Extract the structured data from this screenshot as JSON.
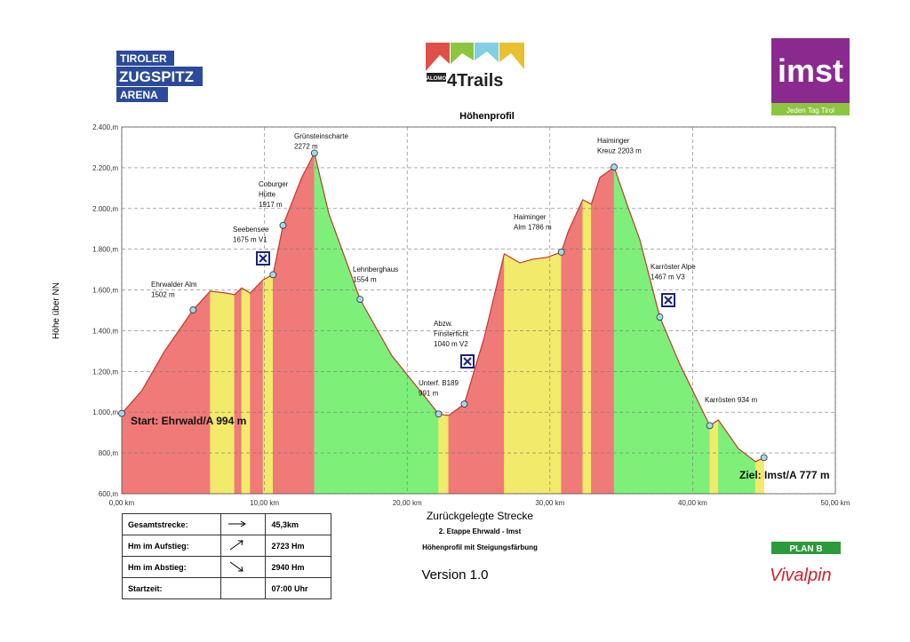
{
  "chart_data": {
    "type": "area",
    "title": "Höhenprofil",
    "xlabel": "Zurückgelegte Strecke",
    "ylabel": "Höhe über NN",
    "subtitle": [
      "2. Etappe Ehrwald - Imst",
      "Höhenprofil mit Steigungsfärbung"
    ],
    "version": "Version 1.0",
    "x": [
      0,
      1.4,
      3.0,
      5.0,
      6.2,
      7.3,
      7.9,
      8.4,
      9.0,
      9.9,
      10.6,
      11.3,
      12.6,
      13.5,
      14.5,
      16.7,
      18.9,
      21.4,
      22.2,
      22.9,
      24.0,
      25.4,
      26.8,
      27.9,
      28.8,
      29.8,
      30.8,
      31.3,
      32.3,
      32.9,
      33.5,
      34.5,
      35.4,
      36.3,
      37.7,
      39.1,
      41.2,
      41.8,
      43.2,
      44.4,
      45.0
    ],
    "values": [
      994,
      1105,
      1300,
      1502,
      1594,
      1585,
      1577,
      1610,
      1585,
      1650,
      1675,
      1917,
      2150,
      2272,
      1977,
      1554,
      1280,
      1062,
      991,
      984,
      1040,
      1367,
      1777,
      1733,
      1751,
      1760,
      1786,
      1890,
      2043,
      2021,
      2152,
      2203,
      2021,
      1847,
      1467,
      1236,
      934,
      962,
      822,
      757,
      777
    ],
    "line_color": "#c0392b",
    "colors": {
      "ascent": "#f07a78",
      "flat": "#f2ea6a",
      "descent": "#7ef07a"
    },
    "xlim": [
      0,
      50
    ],
    "ylim": [
      600,
      2400
    ],
    "grid": true,
    "xticks": [
      {
        "value": 0,
        "label": "0,00 km"
      },
      {
        "value": 10,
        "label": "10,00 km"
      },
      {
        "value": 20,
        "label": "20,00 km"
      },
      {
        "value": 30,
        "label": "30,00 km"
      },
      {
        "value": 40,
        "label": "40,00 km"
      },
      {
        "value": 50,
        "label": "50,00 km"
      }
    ],
    "yticks": [
      {
        "value": 600,
        "label": "600,m"
      },
      {
        "value": 800,
        "label": "800,m"
      },
      {
        "value": 1000,
        "label": "1.000,m"
      },
      {
        "value": 1200,
        "label": "1.200,m"
      },
      {
        "value": 1400,
        "label": "1.400,m"
      },
      {
        "value": 1600,
        "label": "1.600,m"
      },
      {
        "value": 1800,
        "label": "1.800,m"
      },
      {
        "value": 2000,
        "label": "2.000,m"
      },
      {
        "value": 2200,
        "label": "2.200,m"
      },
      {
        "value": 2400,
        "label": "2.400,m"
      }
    ],
    "waypoints": [
      {
        "x": 0,
        "y": 994,
        "label": [
          "Start: Ehrwald/A  994 m"
        ]
      },
      {
        "x": 5.0,
        "y": 1502,
        "label": [
          "Ehrwalder Alm",
          "1502 m"
        ]
      },
      {
        "x": 10.6,
        "y": 1675,
        "label": [
          "Seebensee",
          "1675 m V1"
        ]
      },
      {
        "x": 11.3,
        "y": 1917,
        "label": [
          "Coburger",
          "Hütte",
          "1917 m"
        ]
      },
      {
        "x": 13.5,
        "y": 2272,
        "label": [
          "Grünsteinscharte",
          "2272 m"
        ]
      },
      {
        "x": 16.7,
        "y": 1554,
        "label": [
          "Lehnberghaus",
          "1554 m"
        ]
      },
      {
        "x": 22.2,
        "y": 991,
        "label": [
          "Unterf. B189",
          "991 m"
        ]
      },
      {
        "x": 24.0,
        "y": 1040,
        "label": [
          "Abzw.",
          "Finsterficht",
          "1040 m V2"
        ]
      },
      {
        "x": 30.8,
        "y": 1786,
        "label": [
          "Haiminger",
          "Alm 1786 m"
        ]
      },
      {
        "x": 34.5,
        "y": 2203,
        "label": [
          "Haiminger",
          "Kreuz  2203 m"
        ]
      },
      {
        "x": 37.7,
        "y": 1467,
        "label": [
          "Karröster Alpe",
          "1467 m V3"
        ]
      },
      {
        "x": 41.2,
        "y": 934,
        "label": [
          "Karrösten 934 m"
        ]
      },
      {
        "x": 45.0,
        "y": 777,
        "label": [
          "Ziel: Imst/A  777 m"
        ]
      }
    ]
  },
  "logos": {
    "arena": [
      "TIROLER",
      "ZUGSPITZ",
      "ARENA"
    ],
    "trails_brand": "SALOMON",
    "trails": "4Trails",
    "imst": "imst",
    "imst_slogan": "Jeden Tag Tirol",
    "planb": "PLAN B",
    "vivalpin": "Vivalpin"
  },
  "summary": {
    "rows": [
      [
        "Gesamtstrecke:",
        "45,3km"
      ],
      [
        "Hm im Aufstieg:",
        "2723 Hm"
      ],
      [
        "Hm im Abstieg:",
        "2940 Hm"
      ],
      [
        "Startzeit:",
        "07:00 Uhr"
      ]
    ]
  }
}
